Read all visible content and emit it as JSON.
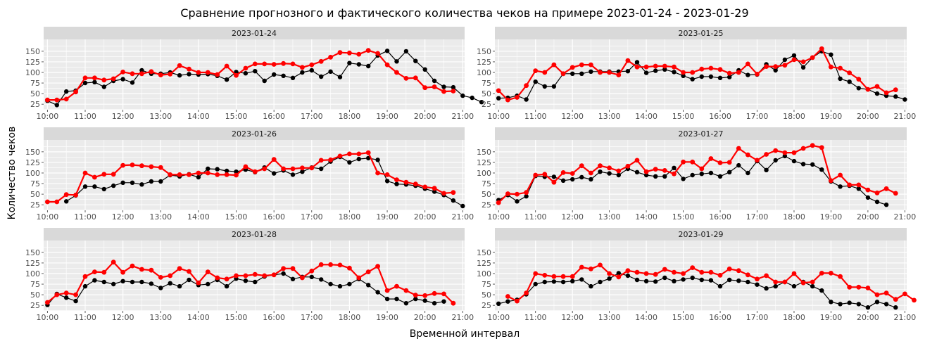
{
  "chart_data": {
    "type": "line",
    "title": "Сравнение прогнозного и фактического количества чеков на примере 2023-01-24 - 2023-01-29",
    "xlabel": "Временной интервал",
    "ylabel": "Количество чеков",
    "x_ticks": [
      "10:00",
      "11:00",
      "12:00",
      "13:00",
      "14:00",
      "15:00",
      "16:00",
      "17:00",
      "18:00",
      "19:00",
      "20:00",
      "21:00"
    ],
    "y_ticks": [
      25,
      50,
      75,
      100,
      125,
      150
    ],
    "xlim": [
      9.9,
      21.05
    ],
    "ylim": [
      12,
      178
    ],
    "colors": {
      "actual": "#000000",
      "forecast": "#ff0000",
      "panel": "#ebebeb",
      "strip": "#d9d9d9",
      "grid": "#ffffff"
    },
    "facets": [
      {
        "label": "2023-01-24",
        "actual_start": 10.0,
        "forecast_start": 10.0,
        "actual": [
          33,
          23,
          55,
          57,
          75,
          77,
          66,
          80,
          84,
          76,
          105,
          97,
          97,
          100,
          93,
          96,
          95,
          96,
          92,
          83,
          101,
          98,
          103,
          80,
          95,
          92,
          87,
          100,
          105,
          90,
          102,
          89,
          122,
          119,
          115,
          140,
          151,
          126,
          150,
          127,
          107,
          80,
          66,
          65,
          45,
          40,
          30
        ],
        "forecast": [
          35,
          35,
          37,
          54,
          87,
          87,
          82,
          85,
          101,
          97,
          97,
          102,
          94,
          96,
          116,
          108,
          100,
          100,
          95,
          115,
          93,
          110,
          120,
          120,
          119,
          121,
          120,
          112,
          118,
          126,
          136,
          147,
          146,
          143,
          152,
          145,
          118,
          100,
          86,
          87,
          64,
          66,
          55,
          56
        ]
      },
      {
        "label": "2023-01-25",
        "actual_start": 10.0,
        "forecast_start": 10.0,
        "actual": [
          39,
          40,
          45,
          36,
          78,
          67,
          67,
          97,
          97,
          97,
          102,
          102,
          102,
          102,
          103,
          124,
          99,
          104,
          107,
          101,
          92,
          84,
          90,
          90,
          87,
          89,
          105,
          94,
          95,
          119,
          105,
          130,
          140,
          112,
          135,
          150,
          142,
          85,
          78,
          63,
          60,
          50,
          45,
          43,
          36
        ],
        "forecast": [
          57,
          35,
          41,
          69,
          104,
          100,
          118,
          97,
          112,
          118,
          118,
          100,
          100,
          94,
          128,
          113,
          113,
          115,
          115,
          113,
          100,
          100,
          108,
          110,
          107,
          98,
          100,
          120,
          96,
          114,
          114,
          117,
          130,
          125,
          135,
          156,
          113,
          110,
          99,
          84,
          60,
          67,
          52,
          59
        ]
      },
      {
        "label": "2023-01-26",
        "actual_start": 10.5,
        "forecast_start": 10.0,
        "actual": [
          33,
          47,
          68,
          68,
          62,
          70,
          77,
          77,
          73,
          80,
          80,
          95,
          92,
          97,
          90,
          110,
          109,
          105,
          103,
          108,
          102,
          113,
          99,
          106,
          96,
          103,
          113,
          110,
          127,
          138,
          125,
          133,
          135,
          131,
          81,
          74,
          73,
          70,
          63,
          56,
          48,
          35,
          22
        ],
        "forecast": [
          32,
          32,
          49,
          48,
          100,
          90,
          97,
          97,
          118,
          119,
          117,
          115,
          113,
          96,
          96,
          96,
          100,
          100,
          96,
          96,
          95,
          115,
          103,
          110,
          132,
          110,
          110,
          112,
          112,
          130,
          131,
          140,
          145,
          145,
          148,
          100,
          96,
          84,
          78,
          74,
          67,
          64,
          52,
          54
        ]
      },
      {
        "label": "2023-01-27",
        "actual_start": 10.0,
        "forecast_start": 10.0,
        "actual": [
          36,
          48,
          33,
          45,
          93,
          91,
          91,
          82,
          85,
          90,
          85,
          103,
          99,
          95,
          110,
          102,
          95,
          92,
          92,
          112,
          86,
          95,
          98,
          100,
          92,
          102,
          118,
          100,
          128,
          107,
          130,
          140,
          128,
          121,
          120,
          108,
          80,
          68,
          70,
          63,
          42,
          32,
          25
        ],
        "forecast": [
          30,
          51,
          50,
          54,
          95,
          97,
          78,
          101,
          99,
          117,
          100,
          117,
          112,
          105,
          116,
          130,
          103,
          109,
          106,
          98,
          126,
          126,
          110,
          134,
          124,
          125,
          158,
          143,
          130,
          144,
          153,
          148,
          148,
          158,
          165,
          160,
          82,
          95,
          72,
          72,
          60,
          53,
          63,
          52
        ]
      },
      {
        "label": "2023-01-28",
        "actual_start": 10.0,
        "forecast_start": 10.0,
        "actual": [
          26,
          52,
          43,
          35,
          70,
          84,
          80,
          75,
          82,
          80,
          80,
          76,
          66,
          77,
          70,
          85,
          73,
          75,
          85,
          70,
          88,
          83,
          80,
          93,
          97,
          100,
          87,
          92,
          92,
          86,
          75,
          70,
          75,
          87,
          73,
          56,
          40,
          40,
          30,
          40,
          36,
          30,
          34
        ],
        "forecast": [
          32,
          50,
          54,
          50,
          93,
          104,
          103,
          127,
          103,
          118,
          110,
          108,
          91,
          95,
          112,
          105,
          78,
          104,
          90,
          87,
          95,
          95,
          98,
          95,
          97,
          112,
          112,
          90,
          106,
          121,
          121,
          120,
          113,
          90,
          104,
          117,
          60,
          70,
          60,
          49,
          48,
          53,
          52,
          30
        ]
      },
      {
        "label": "2023-01-29",
        "actual_start": 10.0,
        "forecast_start": 10.25,
        "actual": [
          29,
          34,
          38,
          51,
          75,
          80,
          81,
          80,
          82,
          86,
          70,
          80,
          88,
          101,
          95,
          85,
          82,
          81,
          90,
          82,
          86,
          90,
          85,
          84,
          70,
          85,
          83,
          80,
          74,
          65,
          70,
          80,
          70,
          80,
          70,
          60,
          33,
          28,
          31,
          28,
          20,
          33,
          28,
          20
        ],
        "forecast": [
          46,
          35,
          54,
          100,
          96,
          93,
          93,
          93,
          115,
          111,
          120,
          100,
          92,
          107,
          103,
          100,
          98,
          110,
          103,
          100,
          114,
          103,
          103,
          96,
          111,
          107,
          97,
          87,
          95,
          80,
          80,
          100,
          78,
          80,
          101,
          101,
          93,
          68,
          68,
          66,
          50,
          54,
          39,
          52,
          37
        ]
      }
    ]
  }
}
